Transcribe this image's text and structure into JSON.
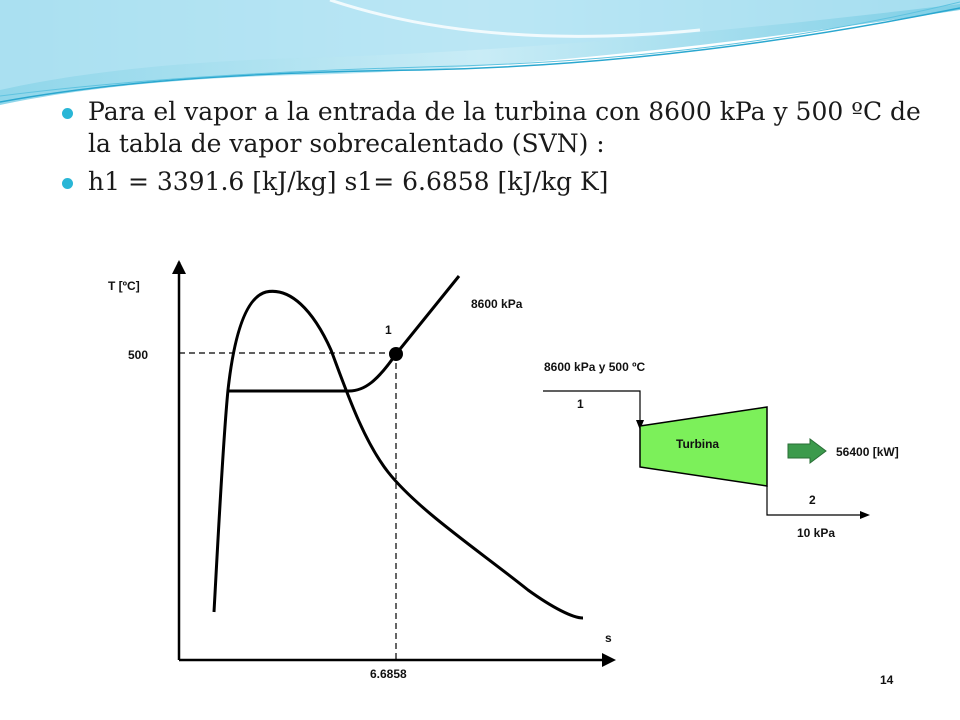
{
  "slide": {
    "bullets": [
      {
        "text": "Para el vapor a la entrada de la turbina con 8600 kPa y 500 ºC de la tabla de vapor sobrecalentado (SVN) :"
      },
      {
        "text": "h1 = 3391.6 [kJ/kg]   s1= 6.6858 [kJ/kg K]"
      }
    ],
    "accent_color": "#29b6d6"
  },
  "ts_diagram": {
    "y_axis_label": "T [ºC]",
    "x_axis_label": "s",
    "temperature_tick": "500",
    "entropy_tick": "6.6858",
    "state_label": "1",
    "isobar_label": "8600 kPa"
  },
  "turbine": {
    "inlet_label": "8600 kPa y 500 ºC",
    "inlet_state": "1",
    "name": "Turbina",
    "power_output": "56400 [kW]",
    "outlet_state": "2",
    "outlet_pressure": "10 kPa",
    "body_color": "#7cf05a",
    "arrow_color": "#3c9a4c"
  },
  "page_number": "14"
}
